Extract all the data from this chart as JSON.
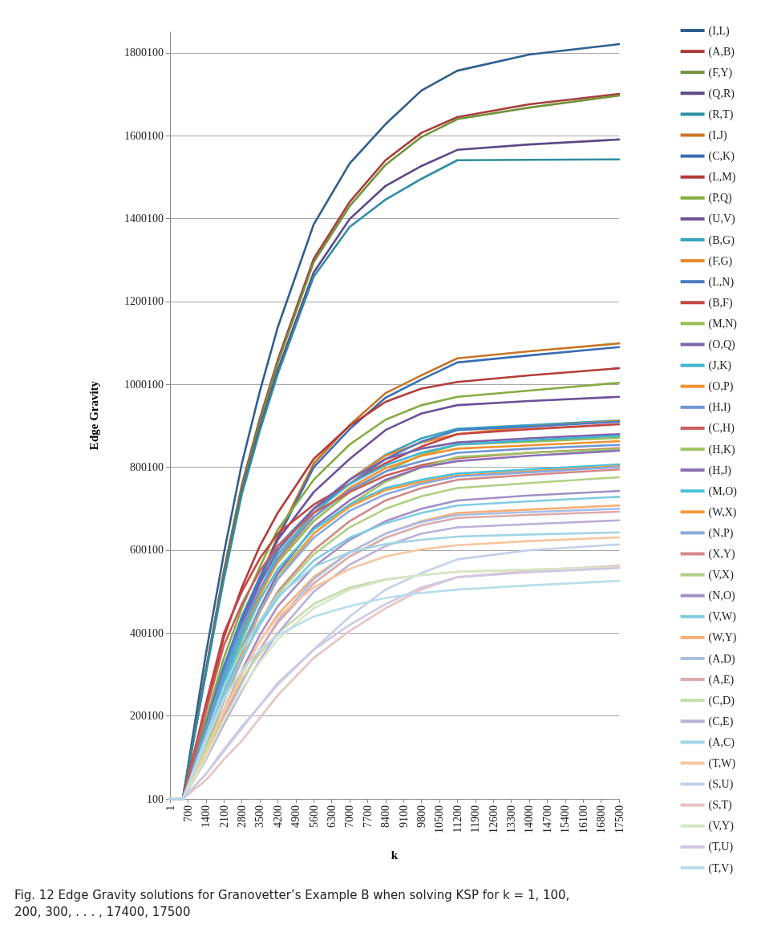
{
  "chart_data": {
    "type": "line",
    "xlabel": "k",
    "ylabel": "Edge Gravity",
    "x": [
      1,
      500,
      1400,
      2100,
      2800,
      3500,
      4200,
      5600,
      7000,
      8400,
      9800,
      11200,
      14000,
      17500
    ],
    "xlim": [
      1,
      17500
    ],
    "xticks": [
      1,
      700,
      1400,
      2100,
      2800,
      3500,
      4200,
      4900,
      5600,
      6300,
      7000,
      7700,
      8400,
      9100,
      9800,
      10500,
      11200,
      11900,
      12600,
      13300,
      14000,
      14700,
      15400,
      16100,
      16800,
      17500
    ],
    "ylim": [
      100,
      1850100
    ],
    "yticks": [
      100,
      200100,
      400100,
      600100,
      800100,
      1000100,
      1200100,
      1400100,
      1600100,
      1800100
    ],
    "grid": "y",
    "legend": "right",
    "marker": "none",
    "annotations": [
      "Fig. 12  Edge Gravity solutions for Granovetter’s Example B when solving KSP for k = 1, 100, 200, 300, . . . , 17400, 17500"
    ],
    "series": [
      {
        "name": "(I,L)",
        "color": "#2f5f8f",
        "values": [
          100,
          100,
          350000,
          592000,
          809000,
          983000,
          1138000,
          1386000,
          1533000,
          1628000,
          1709000,
          1757000,
          1796000,
          1821000
        ]
      },
      {
        "name": "(A,B)",
        "color": "#a83c39",
        "values": [
          100,
          100,
          312000,
          550000,
          757000,
          917000,
          1059000,
          1303000,
          1440000,
          1541000,
          1607000,
          1645000,
          1676000,
          1701000
        ]
      },
      {
        "name": "(F,Y)",
        "color": "#71923a",
        "values": [
          100,
          100,
          310000,
          545000,
          750000,
          910000,
          1052000,
          1295000,
          1430000,
          1530000,
          1597000,
          1640000,
          1668000,
          1697000
        ]
      },
      {
        "name": "(Q,R)",
        "color": "#5e4887",
        "values": [
          100,
          100,
          305000,
          535000,
          740000,
          895000,
          1035000,
          1270000,
          1399000,
          1479000,
          1527000,
          1566000,
          1579000,
          1591000
        ]
      },
      {
        "name": "(R,T)",
        "color": "#2f8ea3",
        "values": [
          100,
          100,
          303000,
          530000,
          735000,
          888000,
          1025000,
          1260000,
          1380000,
          1446000,
          1496000,
          1541000,
          1542000,
          1543000
        ]
      },
      {
        "name": "(I,J)",
        "color": "#c97426",
        "values": [
          100,
          100,
          168000,
          296000,
          418000,
          530000,
          635000,
          809000,
          902000,
          979000,
          1022000,
          1063000,
          1080000,
          1099000
        ]
      },
      {
        "name": "(C,K)",
        "color": "#3a6db3",
        "values": [
          100,
          100,
          168000,
          294000,
          414000,
          525000,
          628000,
          800000,
          892000,
          968000,
          1012000,
          1053000,
          1070000,
          1090000
        ]
      },
      {
        "name": "(L,M)",
        "color": "#b33c3a",
        "values": [
          100,
          100,
          220000,
          390000,
          510000,
          610000,
          690000,
          820000,
          900000,
          958000,
          990000,
          1006000,
          1022000,
          1039000
        ]
      },
      {
        "name": "(P,Q)",
        "color": "#86ab42",
        "values": [
          100,
          100,
          190000,
          340000,
          460000,
          560000,
          650000,
          770000,
          855000,
          915000,
          950000,
          970000,
          985000,
          1004000
        ]
      },
      {
        "name": "(U,V)",
        "color": "#6c5098",
        "values": [
          100,
          100,
          175000,
          310000,
          430000,
          535000,
          625000,
          740000,
          820000,
          890000,
          930000,
          950000,
          960000,
          970000
        ]
      },
      {
        "name": "(B,G)",
        "color": "#35a4c0",
        "values": [
          100,
          100,
          175000,
          315000,
          425000,
          520000,
          600000,
          700000,
          770000,
          830000,
          870000,
          893000,
          902000,
          913000
        ]
      },
      {
        "name": "(F,G)",
        "color": "#e58a2f",
        "values": [
          100,
          100,
          150000,
          280000,
          395000,
          495000,
          580000,
          690000,
          770000,
          828000,
          860000,
          880000,
          898000,
          912000
        ]
      },
      {
        "name": "(L,N)",
        "color": "#4a7cc5",
        "values": [
          100,
          100,
          180000,
          320000,
          440000,
          535000,
          610000,
          700000,
          760000,
          820000,
          862000,
          890000,
          898000,
          910000
        ]
      },
      {
        "name": "(B,F)",
        "color": "#c44542",
        "values": [
          100,
          100,
          230000,
          400000,
          500000,
          580000,
          640000,
          710000,
          760000,
          810000,
          850000,
          880000,
          892000,
          904000
        ]
      },
      {
        "name": "(M,N)",
        "color": "#97bb50",
        "values": [
          100,
          100,
          170000,
          300000,
          410000,
          500000,
          570000,
          670000,
          740000,
          790000,
          830000,
          855000,
          862000,
          871000
        ]
      },
      {
        "name": "(O,Q)",
        "color": "#7d62a8",
        "values": [
          100,
          100,
          160000,
          300000,
          420000,
          520000,
          600000,
          700000,
          770000,
          820000,
          845000,
          860000,
          870000,
          880000
        ]
      },
      {
        "name": "(J,K)",
        "color": "#40b4d0",
        "values": [
          100,
          100,
          150000,
          285000,
          400000,
          505000,
          590000,
          690000,
          760000,
          805000,
          835000,
          855000,
          865000,
          876000
        ]
      },
      {
        "name": "(O,P)",
        "color": "#f29130",
        "values": [
          100,
          100,
          140000,
          270000,
          385000,
          490000,
          575000,
          680000,
          750000,
          798000,
          828000,
          845000,
          853000,
          863000
        ]
      },
      {
        "name": "(H,I)",
        "color": "#6f96d8",
        "values": [
          100,
          100,
          165000,
          300000,
          415000,
          505000,
          580000,
          680000,
          745000,
          790000,
          815000,
          835000,
          845000,
          854000
        ]
      },
      {
        "name": "(C,H)",
        "color": "#c9605c",
        "values": [
          100,
          100,
          210000,
          370000,
          470000,
          550000,
          610000,
          690000,
          740000,
          780000,
          805000,
          822000,
          835000,
          846000
        ]
      },
      {
        "name": "(H,K)",
        "color": "#a1c565",
        "values": [
          100,
          100,
          145000,
          265000,
          370000,
          460000,
          540000,
          640000,
          710000,
          765000,
          800000,
          825000,
          835000,
          844000
        ]
      },
      {
        "name": "(H,J)",
        "color": "#8c70b5",
        "values": [
          100,
          100,
          130000,
          250000,
          360000,
          460000,
          545000,
          655000,
          720000,
          770000,
          800000,
          815000,
          828000,
          840000
        ]
      },
      {
        "name": "(M,O)",
        "color": "#4dc1da",
        "values": [
          100,
          100,
          150000,
          275000,
          385000,
          480000,
          555000,
          650000,
          710000,
          750000,
          770000,
          785000,
          795000,
          807000
        ]
      },
      {
        "name": "(W,X)",
        "color": "#f79a3f",
        "values": [
          100,
          100,
          120000,
          240000,
          350000,
          450000,
          530000,
          640000,
          705000,
          745000,
          765000,
          780000,
          790000,
          803000
        ]
      },
      {
        "name": "(N,P)",
        "color": "#8aa9de",
        "values": [
          100,
          100,
          135000,
          255000,
          360000,
          455000,
          530000,
          630000,
          695000,
          735000,
          760000,
          778000,
          788000,
          801000
        ]
      },
      {
        "name": "(X,Y)",
        "color": "#d28986",
        "values": [
          100,
          100,
          125000,
          235000,
          335000,
          425000,
          500000,
          600000,
          670000,
          720000,
          750000,
          770000,
          782000,
          795000
        ]
      },
      {
        "name": "(V,X)",
        "color": "#b1cf83",
        "values": [
          100,
          100,
          130000,
          240000,
          340000,
          425000,
          495000,
          590000,
          655000,
          700000,
          730000,
          750000,
          762000,
          776000
        ]
      },
      {
        "name": "(N,O)",
        "color": "#a390c5",
        "values": [
          100,
          100,
          110000,
          215000,
          310000,
          395000,
          465000,
          560000,
          625000,
          670000,
          700000,
          720000,
          732000,
          743000
        ]
      },
      {
        "name": "(V,W)",
        "color": "#7fcce2",
        "values": [
          100,
          100,
          140000,
          250000,
          340000,
          420000,
          485000,
          575000,
          630000,
          665000,
          690000,
          708000,
          718000,
          729000
        ]
      },
      {
        "name": "(W,Y)",
        "color": "#f8ae74",
        "values": [
          100,
          100,
          115000,
          215000,
          305000,
          380000,
          445000,
          535000,
          595000,
          640000,
          670000,
          690000,
          698000,
          708000
        ]
      },
      {
        "name": "(A,D)",
        "color": "#a9bee6",
        "values": [
          100,
          100,
          105000,
          195000,
          280000,
          360000,
          430000,
          530000,
          595000,
          640000,
          668000,
          685000,
          692000,
          700000
        ]
      },
      {
        "name": "(A,E)",
        "color": "#dbaaa9",
        "values": [
          100,
          100,
          110000,
          200000,
          285000,
          360000,
          425000,
          520000,
          585000,
          630000,
          660000,
          678000,
          685000,
          693000
        ]
      },
      {
        "name": "(C,D)",
        "color": "#c5dca8",
        "values": [
          100,
          100,
          120000,
          215000,
          290000,
          350000,
          400000,
          470000,
          510000,
          530000,
          540000,
          548000,
          553000,
          560000
        ]
      },
      {
        "name": "(C,E)",
        "color": "#bbb0d5",
        "values": [
          100,
          100,
          95000,
          180000,
          260000,
          335000,
          400000,
          500000,
          565000,
          610000,
          640000,
          655000,
          663000,
          672000
        ]
      },
      {
        "name": "(A,C)",
        "color": "#a0d4e6",
        "values": [
          100,
          100,
          150000,
          270000,
          360000,
          430000,
          490000,
          560000,
          595000,
          615000,
          625000,
          633000,
          638000,
          643000
        ]
      },
      {
        "name": "(T,W)",
        "color": "#f9c5a0",
        "values": [
          100,
          100,
          110000,
          210000,
          300000,
          380000,
          440000,
          510000,
          555000,
          585000,
          602000,
          612000,
          622000,
          631000
        ]
      },
      {
        "name": "(S,U)",
        "color": "#c4d0ea",
        "values": [
          100,
          100,
          60000,
          120000,
          175000,
          225000,
          275000,
          360000,
          440000,
          505000,
          545000,
          578000,
          600000,
          614000
        ]
      },
      {
        "name": "(S,T)",
        "color": "#e7c3c2",
        "values": [
          100,
          100,
          45000,
          95000,
          140000,
          195000,
          250000,
          340000,
          405000,
          460000,
          505000,
          535000,
          550000,
          563000
        ]
      },
      {
        "name": "(V,Y)",
        "color": "#d7e6c5",
        "values": [
          100,
          100,
          100000,
          190000,
          265000,
          330000,
          385000,
          460000,
          505000,
          528000,
          540000,
          548000,
          553000,
          559000
        ]
      },
      {
        "name": "(T,U)",
        "color": "#d0c8e2",
        "values": [
          100,
          100,
          60000,
          115000,
          170000,
          225000,
          280000,
          360000,
          420000,
          470000,
          510000,
          535000,
          547000,
          557000
        ]
      },
      {
        "name": "(T,V)",
        "color": "#b8ddeb",
        "values": [
          100,
          100,
          140000,
          240000,
          310000,
          360000,
          395000,
          440000,
          465000,
          485000,
          497000,
          505000,
          515000,
          526000
        ]
      }
    ]
  }
}
